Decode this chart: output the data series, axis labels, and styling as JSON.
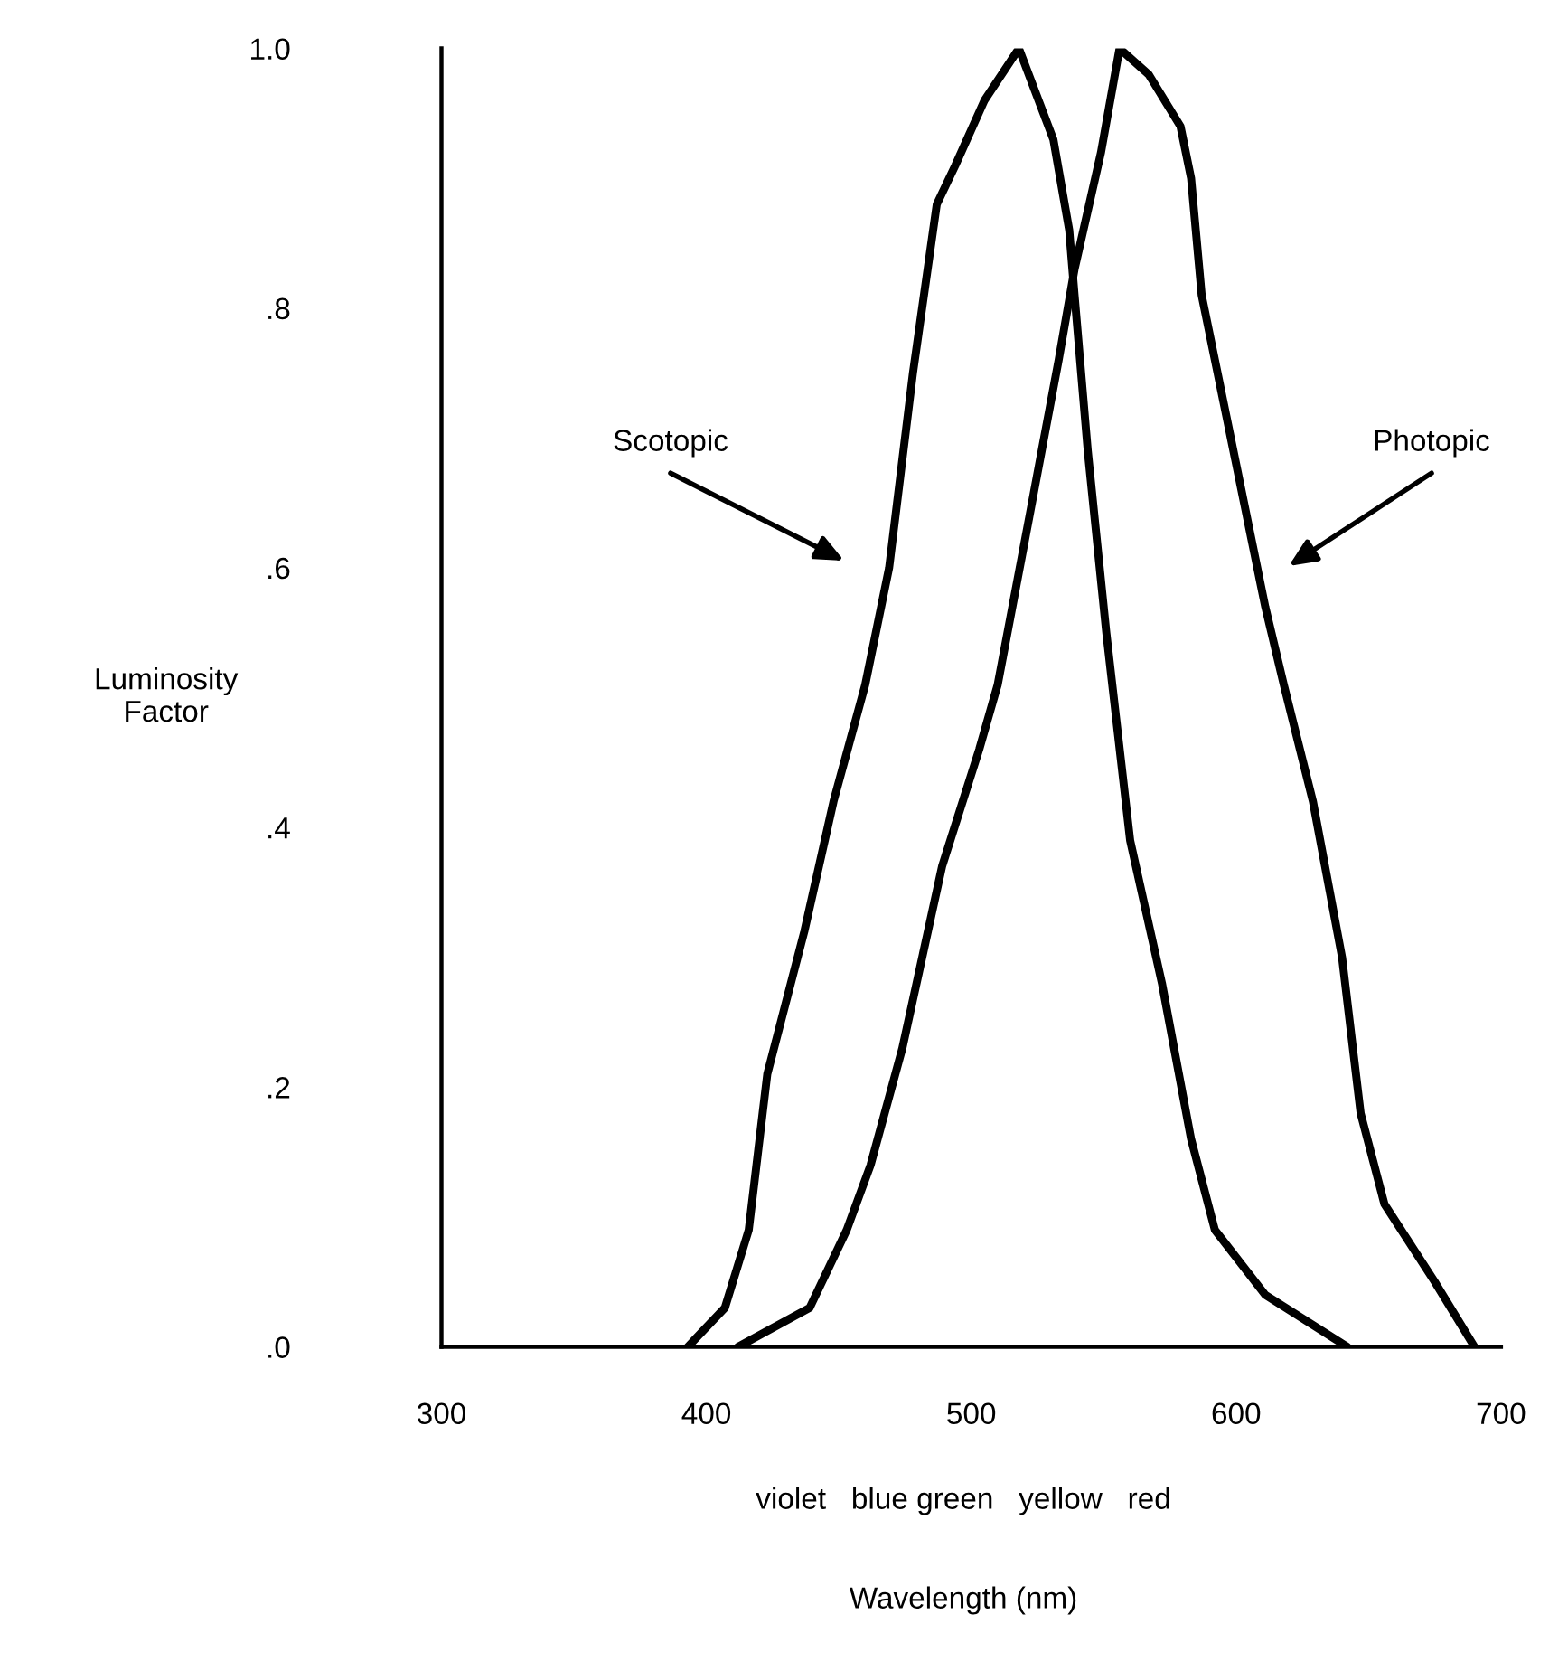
{
  "chart_data": {
    "type": "line",
    "ylabel": "Luminosity\nFactor",
    "xlim": [
      300,
      700
    ],
    "xticks": [
      300,
      400,
      500,
      600,
      700
    ],
    "ylim": [
      0,
      1.0
    ],
    "yticks": [
      {
        "value": 0,
        "label": ".0"
      },
      {
        "value": 0.2,
        "label": ".2"
      },
      {
        "value": 0.4,
        "label": ".4"
      },
      {
        "value": 0.6,
        "label": ".6"
      },
      {
        "value": 0.8,
        "label": ".8"
      },
      {
        "value": 1.0,
        "label": "1.0"
      }
    ],
    "grid": false,
    "legend": false,
    "marker": "none",
    "line_style": "solid",
    "series": [
      {
        "color": "#000000",
        "x": [
          393,
          407,
          416,
          423,
          437,
          448,
          460,
          469,
          478,
          487,
          494,
          505,
          518,
          531,
          537,
          539,
          544,
          551,
          560,
          572,
          583,
          592,
          611,
          642
        ],
        "values": [
          0,
          0.03,
          0.09,
          0.21,
          0.32,
          0.42,
          0.51,
          0.6,
          0.75,
          0.88,
          0.91,
          0.96,
          1.0,
          0.93,
          0.86,
          0.81,
          0.69,
          0.55,
          0.39,
          0.28,
          0.16,
          0.09,
          0.04,
          0
        ]
      },
      {
        "color": "#000000",
        "x": [
          412,
          439,
          453,
          462,
          474,
          489,
          503,
          510,
          522,
          533,
          539,
          549,
          556,
          567,
          579,
          583,
          587,
          594,
          611,
          618,
          629,
          640,
          647,
          656,
          675,
          690
        ],
        "values": [
          0,
          0.03,
          0.09,
          0.14,
          0.23,
          0.37,
          0.46,
          0.51,
          0.64,
          0.76,
          0.83,
          0.92,
          1.0,
          0.98,
          0.94,
          0.9,
          0.81,
          0.74,
          0.57,
          0.51,
          0.42,
          0.3,
          0.18,
          0.11,
          0.05,
          0
        ]
      }
    ],
    "annotations": [
      "Scotopic",
      "Photopic",
      "violet   blue green   yellow   red",
      "Wavelength (nm)"
    ]
  }
}
